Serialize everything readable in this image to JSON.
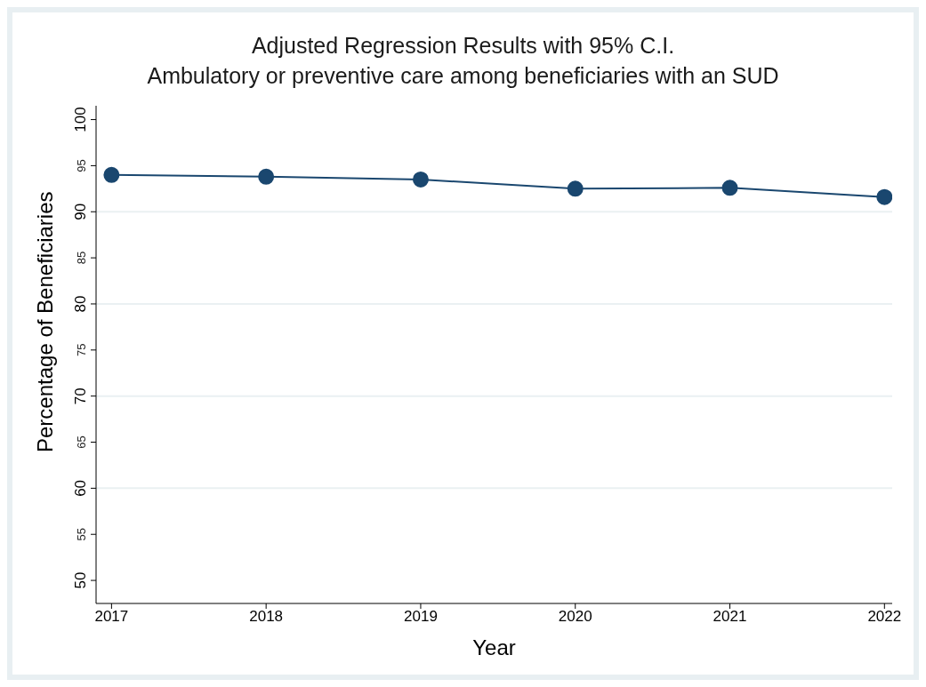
{
  "chart_data": {
    "type": "line",
    "title": "Adjusted Regression Results with 95% C.I.",
    "subtitle": "Ambulatory or preventive care among beneficiaries with an SUD",
    "xlabel": "Year",
    "ylabel": "Percentage of Beneficiaries",
    "x": [
      2017,
      2018,
      2019,
      2020,
      2021,
      2022
    ],
    "series": [
      {
        "color": "#1a476f",
        "values": [
          94.0,
          93.8,
          93.5,
          92.5,
          92.6,
          91.6
        ]
      }
    ],
    "xlim": [
      2016.9,
      2022.05
    ],
    "xticks": [
      2017,
      2018,
      2019,
      2020,
      2021,
      2022
    ],
    "ylim": [
      47.5,
      101.5
    ],
    "yticks": [
      50,
      55,
      60,
      65,
      70,
      75,
      80,
      85,
      90,
      95,
      100
    ],
    "grid": "y",
    "marker": "circle",
    "line_style": "solid",
    "legend": false
  }
}
